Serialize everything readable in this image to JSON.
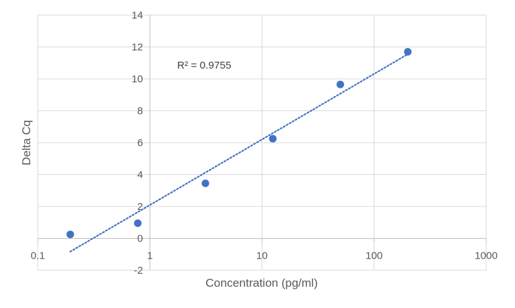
{
  "chart_data": {
    "type": "scatter",
    "xscale": "log",
    "xlabel": "Concentration (pg/ml)",
    "ylabel": "Delta Cq",
    "xlim": [
      0.1,
      1000
    ],
    "ylim": [
      -2,
      14
    ],
    "xticks": [
      "0.1",
      "1",
      "10",
      "100",
      "1000"
    ],
    "yticks": [
      "-2",
      "0",
      "2",
      "4",
      "6",
      "8",
      "10",
      "12",
      "14"
    ],
    "grid": true,
    "series": [
      {
        "x": [
          0.195,
          0.78,
          3.13,
          12.5,
          50,
          200
        ],
        "y": [
          0.25,
          0.95,
          3.45,
          6.25,
          9.65,
          11.7
        ],
        "color": "#4472C4"
      }
    ],
    "trendline": {
      "type": "logarithmic",
      "style": "dotted",
      "color": "#4472C4",
      "x_start": 0.195,
      "y_start": -0.83,
      "x_end": 200,
      "y_end": 11.55
    },
    "annotation": "R² = 0.9755"
  }
}
